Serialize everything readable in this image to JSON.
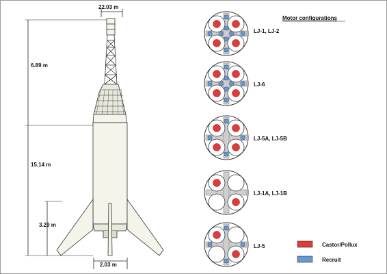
{
  "title": "Motor configurations",
  "colors": {
    "castor_pollux": "#e03a3a",
    "recruit": "#6699cc",
    "outline": "#333333",
    "cross": "#cfcfcf",
    "rocket_body": "#f4f4ea"
  },
  "dimensions": {
    "fin_span": "22.03 m",
    "tower_height": "6.89 m",
    "body_height": "15.14 m",
    "fin_height": "3.29 m",
    "base_width": "2.03 m"
  },
  "configurations": [
    {
      "label": "LJ-1, LJ-2",
      "castor_pollux": [
        true,
        true,
        true,
        true
      ],
      "recruit": [
        true,
        true,
        true,
        true,
        true,
        true,
        true,
        true
      ]
    },
    {
      "label": "LJ-6",
      "castor_pollux": [
        true,
        true,
        true,
        true
      ],
      "recruit": [
        true,
        true,
        true,
        true,
        true,
        true,
        true,
        true
      ]
    },
    {
      "label": "LJ-5A, LJ-5B",
      "castor_pollux": [
        true,
        true,
        true,
        true
      ],
      "recruit": [
        true,
        true,
        true,
        true,
        false,
        false,
        false,
        false
      ]
    },
    {
      "label": "LJ-1A, LJ-1B",
      "castor_pollux": [
        true,
        false,
        false,
        true
      ],
      "recruit": [
        false,
        false,
        false,
        false,
        false,
        false,
        false,
        false
      ]
    },
    {
      "label": "LJ-5",
      "castor_pollux": [
        true,
        false,
        false,
        true
      ],
      "recruit": [
        true,
        true,
        true,
        true,
        false,
        false,
        false,
        false
      ]
    }
  ],
  "legend": [
    {
      "label": "Castor/Pollux",
      "color_key": "castor_pollux"
    },
    {
      "label": "Recruit",
      "color_key": "recruit"
    }
  ]
}
